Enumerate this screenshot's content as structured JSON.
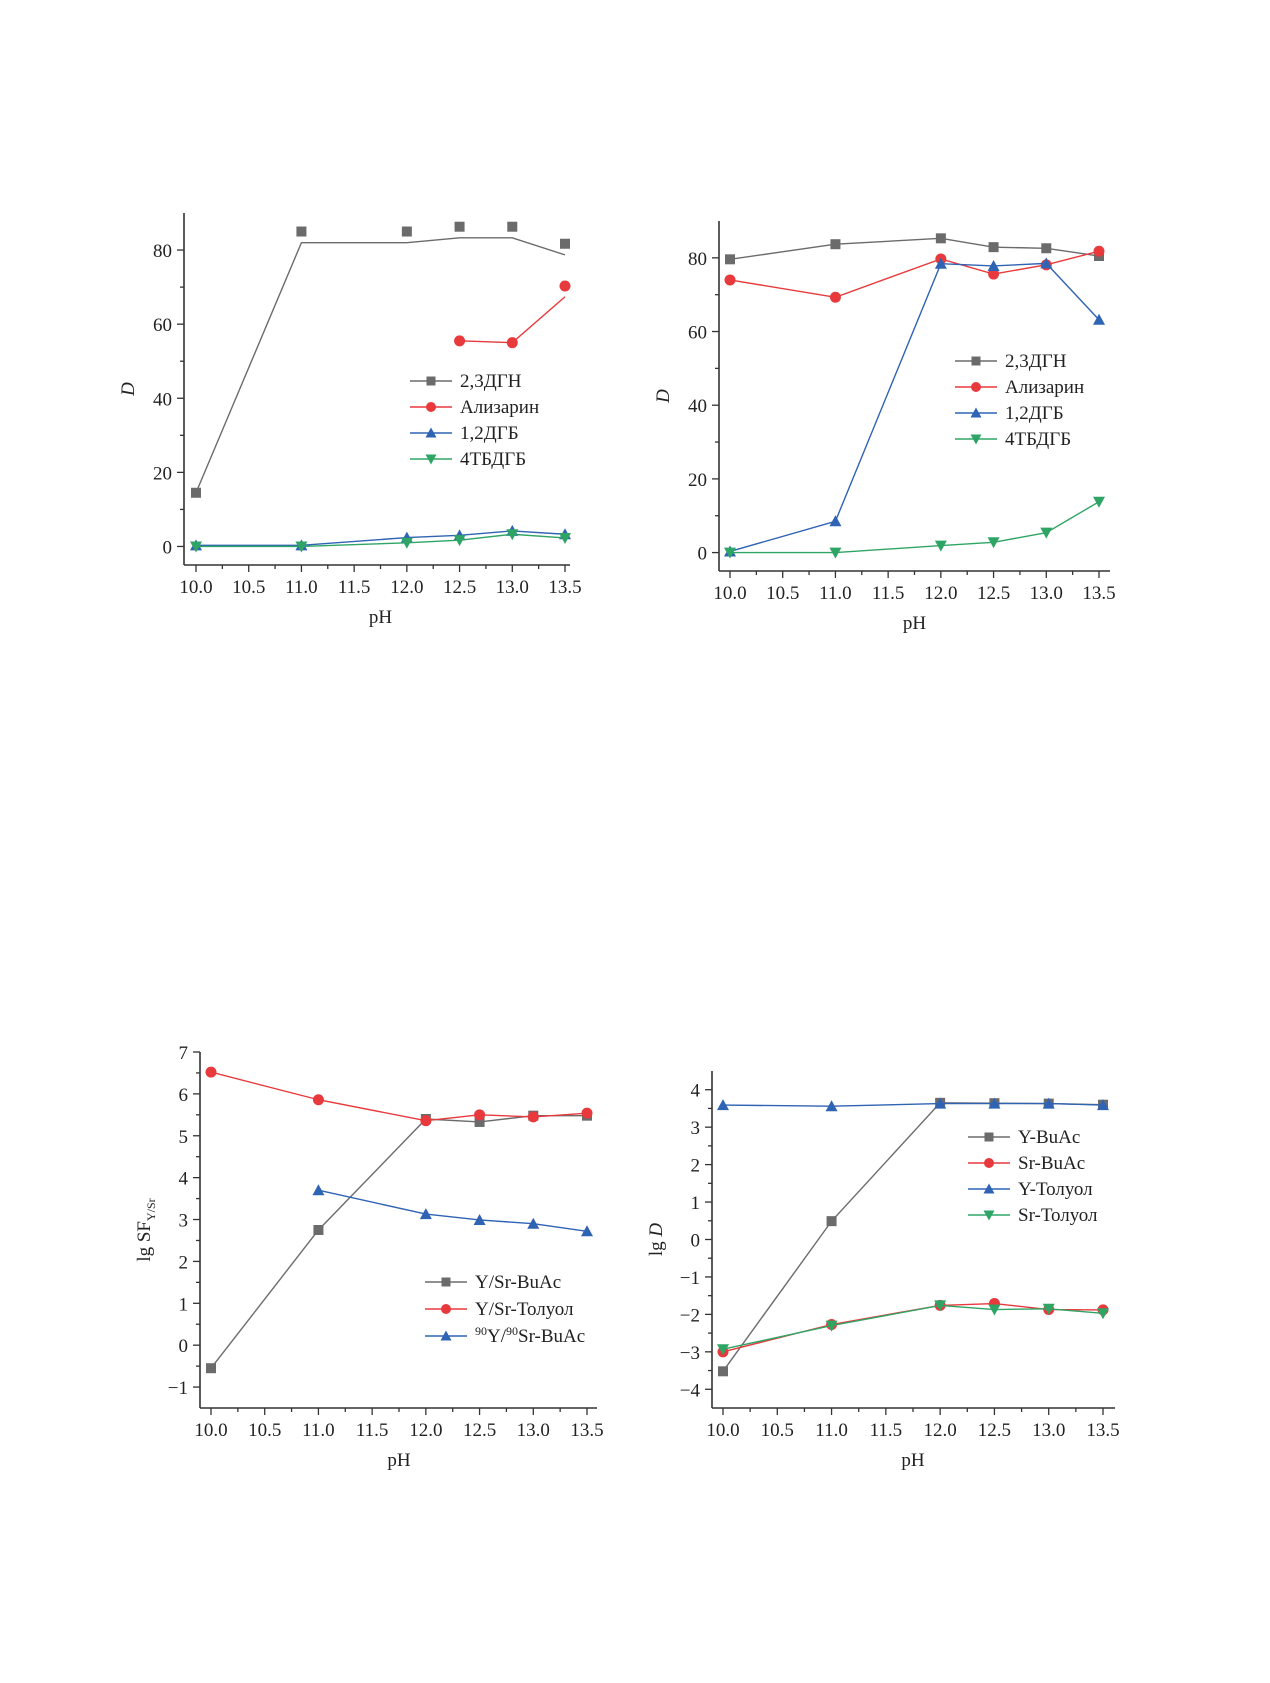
{
  "colors": {
    "gray": "#6b6b6b",
    "red": "#e8393c",
    "blue": "#2f63b4",
    "green": "#2fa565",
    "axis": "#333333"
  },
  "chart_data": [
    {
      "id": "top-left",
      "type": "line",
      "title": "",
      "xlabel": "pH",
      "ylabel": "D",
      "ylabel_italic": true,
      "xlim": [
        9.9,
        13.6
      ],
      "ylim": [
        -5,
        90
      ],
      "xticks": [
        10.0,
        10.5,
        11.0,
        11.5,
        12.0,
        12.5,
        13.0,
        13.5
      ],
      "xtick_labels": [
        "10.0",
        "10.5",
        "11.0",
        "11.5",
        "12.0",
        "12.5",
        "13.0",
        "13.5"
      ],
      "yticks": [
        0,
        20,
        40,
        60,
        80
      ],
      "ytick_labels": [
        "0",
        "20",
        "40",
        "60",
        "80"
      ],
      "legend_position": "center-right",
      "series": [
        {
          "name": "2,3ДГН",
          "color": "gray",
          "marker": "square",
          "x": [
            10.0,
            11.0,
            12.0,
            12.5,
            13.0,
            13.5
          ],
          "values": [
            14.5,
            85.0,
            85.0,
            86.3,
            86.3,
            81.7
          ],
          "line_values": [
            14.5,
            82.0,
            82.0,
            83.3,
            83.3,
            78.7
          ]
        },
        {
          "name": "Ализарин",
          "color": "red",
          "marker": "circle",
          "x": [
            12.5,
            13.0,
            13.5
          ],
          "values": [
            55.5,
            55.0,
            70.3
          ],
          "line_values": [
            55.5,
            55.0,
            67.4
          ]
        },
        {
          "name": "1,2ДГБ",
          "color": "blue",
          "marker": "triangle-up",
          "x": [
            10.0,
            11.0,
            12.0,
            12.5,
            13.0,
            13.5
          ],
          "values": [
            0.3,
            0.3,
            2.4,
            3.0,
            4.2,
            3.3
          ]
        },
        {
          "name": "4ТБДГБ",
          "color": "green",
          "marker": "triangle-down",
          "x": [
            10.0,
            11.0,
            12.0,
            12.5,
            13.0,
            13.5
          ],
          "values": [
            0,
            0,
            1.0,
            1.7,
            3.3,
            2.3
          ]
        }
      ]
    },
    {
      "id": "top-right",
      "type": "line",
      "title": "",
      "xlabel": "pH",
      "ylabel": "D",
      "ylabel_italic": true,
      "xlim": [
        9.9,
        13.6
      ],
      "ylim": [
        -5,
        90
      ],
      "xticks": [
        10.0,
        10.5,
        11.0,
        11.5,
        12.0,
        12.5,
        13.0,
        13.5
      ],
      "xtick_labels": [
        "10.0",
        "10.5",
        "11.0",
        "11.5",
        "12.0",
        "12.5",
        "13.0",
        "13.5"
      ],
      "yticks": [
        0,
        20,
        40,
        60,
        80
      ],
      "ytick_labels": [
        "0",
        "20",
        "40",
        "60",
        "80"
      ],
      "legend_position": "center-right",
      "series": [
        {
          "name": "2,3ДГН",
          "color": "gray",
          "marker": "square",
          "x": [
            10.0,
            11.0,
            12.0,
            12.5,
            13.0,
            13.5
          ],
          "values": [
            79.6,
            83.7,
            85.3,
            82.9,
            82.6,
            80.5
          ]
        },
        {
          "name": "Ализарин",
          "color": "red",
          "marker": "circle",
          "x": [
            10.0,
            11.0,
            12.0,
            12.5,
            13.0,
            13.5
          ],
          "values": [
            74.0,
            69.3,
            79.7,
            75.6,
            78.1,
            81.8
          ]
        },
        {
          "name": "1,2ДГБ",
          "color": "blue",
          "marker": "triangle-up",
          "x": [
            10.0,
            11.0,
            12.0,
            12.5,
            13.0,
            13.5
          ],
          "values": [
            0.3,
            8.5,
            78.4,
            77.8,
            78.5,
            63.2
          ]
        },
        {
          "name": "4ТБДГБ",
          "color": "green",
          "marker": "triangle-down",
          "x": [
            10.0,
            11.0,
            12.0,
            12.5,
            13.0,
            13.5
          ],
          "values": [
            0,
            0,
            1.9,
            2.8,
            5.4,
            13.8
          ]
        }
      ]
    },
    {
      "id": "bottom-left",
      "type": "line",
      "title": "",
      "xlabel": "pH",
      "ylabel": "lg SF",
      "ylabel_sub": "Y/Sr",
      "ylabel_italic": false,
      "xlim": [
        9.9,
        13.6
      ],
      "ylim": [
        -1.5,
        7
      ],
      "xticks": [
        10.0,
        10.5,
        11.0,
        11.5,
        12.0,
        12.5,
        13.0,
        13.5
      ],
      "xtick_labels": [
        "10.0",
        "10.5",
        "11.0",
        "11.5",
        "12.0",
        "12.5",
        "13.0",
        "13.5"
      ],
      "yticks": [
        -1,
        0,
        1,
        2,
        3,
        4,
        5,
        6,
        7
      ],
      "ytick_labels": [
        "−1",
        "0",
        "1",
        "2",
        "3",
        "4",
        "5",
        "6",
        "7"
      ],
      "legend_position": "lower-right",
      "series": [
        {
          "name": "Y/Sr-BuAc",
          "color": "gray",
          "marker": "square",
          "x": [
            10.0,
            11.0,
            12.0,
            12.5,
            13.0,
            13.5
          ],
          "values": [
            -0.55,
            2.75,
            5.4,
            5.33,
            5.48,
            5.48
          ]
        },
        {
          "name": "Y/Sr-Толуол",
          "color": "red",
          "marker": "circle",
          "x": [
            10.0,
            11.0,
            12.0,
            12.5,
            13.0,
            13.5
          ],
          "values": [
            6.52,
            5.86,
            5.36,
            5.5,
            5.45,
            5.54
          ]
        },
        {
          "name": "90Y/90Sr-BuAc",
          "name_parts": {
            "sup1": "90",
            "t1": "Y/",
            "sup2": "90",
            "t2": "Sr-BuAc"
          },
          "color": "blue",
          "marker": "triangle-up",
          "x": [
            11.0,
            12.0,
            12.5,
            13.0,
            13.5
          ],
          "values": [
            3.7,
            3.13,
            2.99,
            2.9,
            2.72
          ]
        }
      ]
    },
    {
      "id": "bottom-right",
      "type": "line",
      "title": "",
      "xlabel": "pH",
      "ylabel": "lg D",
      "ylabel_italic_part": "D",
      "xlim": [
        9.9,
        13.6
      ],
      "ylim": [
        -4.5,
        4.5
      ],
      "xticks": [
        10.0,
        10.5,
        11.0,
        11.5,
        12.0,
        12.5,
        13.0,
        13.5
      ],
      "xtick_labels": [
        "10.0",
        "10.5",
        "11.0",
        "11.5",
        "12.0",
        "12.5",
        "13.0",
        "13.5"
      ],
      "yticks": [
        -4,
        -3,
        -2,
        -1,
        0,
        1,
        2,
        3,
        4
      ],
      "ytick_labels": [
        "−4",
        "−3",
        "−2",
        "−1",
        "0",
        "1",
        "2",
        "3",
        "4"
      ],
      "legend_position": "upper-right",
      "series": [
        {
          "name": "Y-BuAc",
          "color": "gray",
          "marker": "square",
          "x": [
            10.0,
            11.0,
            12.0,
            12.5,
            13.0,
            13.5
          ],
          "values": [
            -3.52,
            0.49,
            3.65,
            3.64,
            3.63,
            3.6
          ]
        },
        {
          "name": "Sr-BuAc",
          "color": "red",
          "marker": "circle",
          "x": [
            10.0,
            11.0,
            12.0,
            12.5,
            13.0,
            13.5
          ],
          "values": [
            -3.0,
            -2.27,
            -1.76,
            -1.71,
            -1.87,
            -1.88
          ]
        },
        {
          "name": "Y-Толуол",
          "color": "blue",
          "marker": "triangle-up",
          "x": [
            10.0,
            11.0,
            12.0,
            12.5,
            13.0,
            13.5
          ],
          "values": [
            3.59,
            3.56,
            3.63,
            3.63,
            3.63,
            3.59
          ]
        },
        {
          "name": "Sr-Толуол",
          "color": "green",
          "marker": "triangle-down",
          "x": [
            10.0,
            11.0,
            12.0,
            12.5,
            13.0,
            13.5
          ],
          "values": [
            -2.93,
            -2.3,
            -1.76,
            -1.87,
            -1.85,
            -1.97
          ]
        }
      ]
    }
  ]
}
